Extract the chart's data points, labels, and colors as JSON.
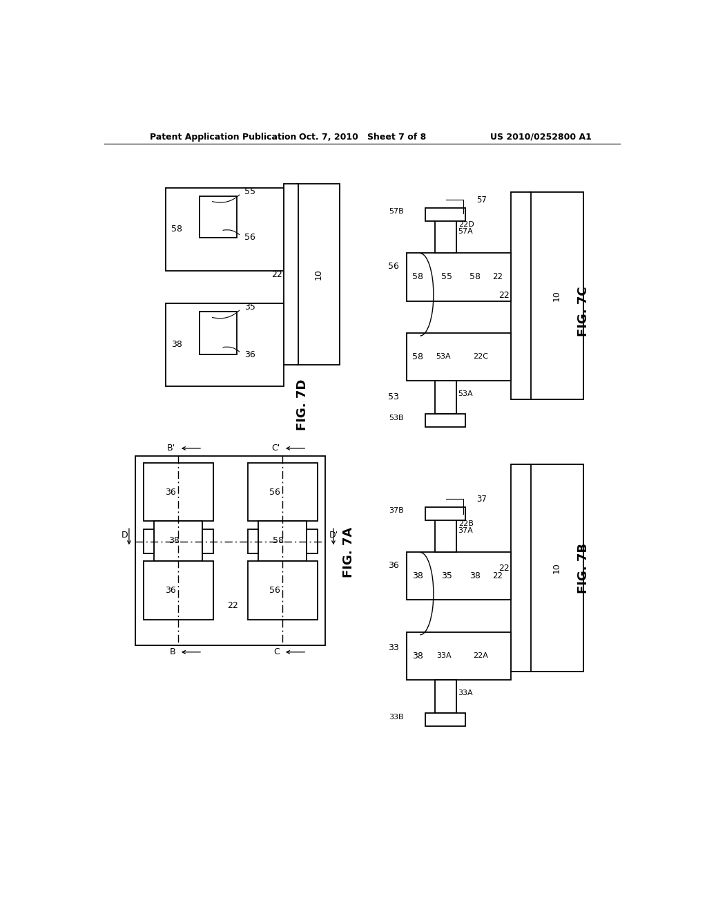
{
  "bg": "#ffffff",
  "header_left": "Patent Application Publication",
  "header_mid": "Oct. 7, 2010   Sheet 7 of 8",
  "header_right": "US 2010/0252800 A1",
  "fig7A": "FIG. 7A",
  "fig7B": "FIG. 7B",
  "fig7C": "FIG. 7C",
  "fig7D": "FIG. 7D"
}
